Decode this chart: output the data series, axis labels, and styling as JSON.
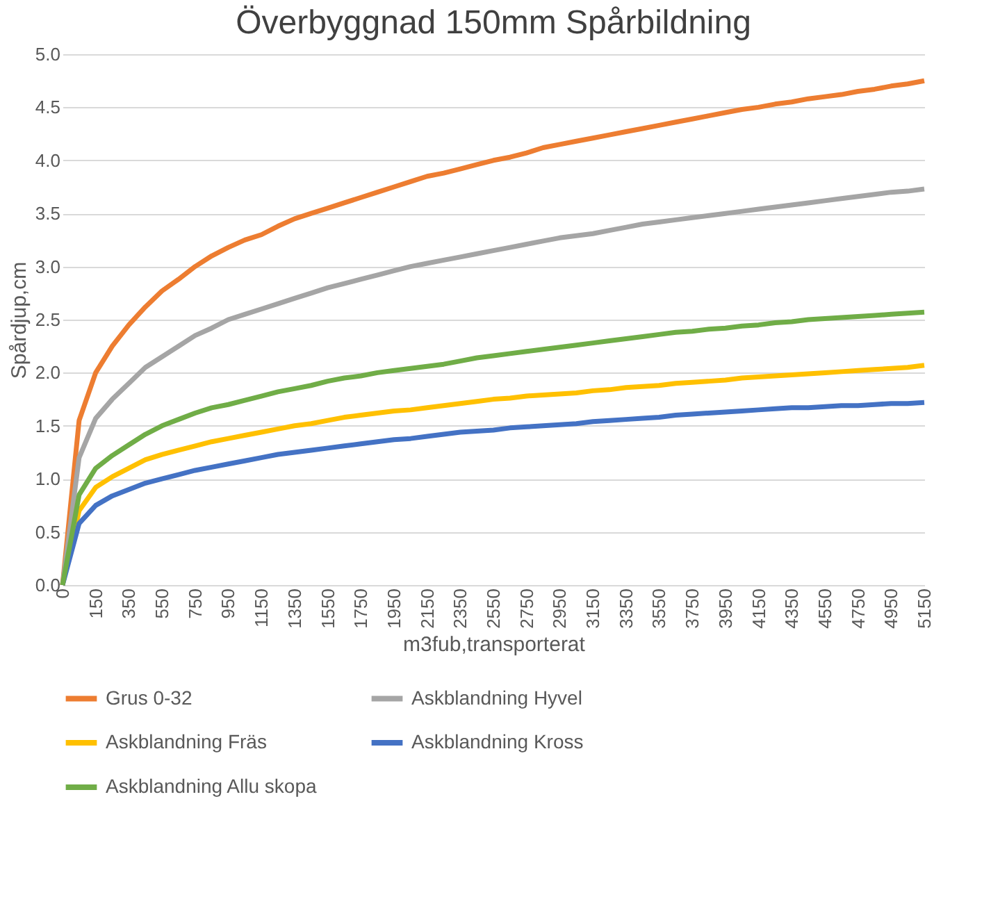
{
  "chart_data": {
    "type": "line",
    "title": "Överbyggnad 150mm Spårbildning",
    "xlabel": "m3fub,transporterat",
    "ylabel": "Spårdjup,cm",
    "categories": [
      "0",
      null,
      "150",
      null,
      "350",
      null,
      "550",
      null,
      "750",
      null,
      "950",
      null,
      "1150",
      null,
      "1350",
      null,
      "1550",
      null,
      "1750",
      null,
      "1950",
      null,
      "2150",
      null,
      "2350",
      null,
      "2550",
      null,
      "2750",
      null,
      "2950",
      null,
      "3150",
      null,
      "3350",
      null,
      "3550",
      null,
      "3750",
      null,
      "3950",
      null,
      "4150",
      null,
      "4350",
      null,
      "4550",
      null,
      "4750",
      null,
      "4950",
      null,
      "5150"
    ],
    "series": [
      {
        "name": "Grus 0-32",
        "color": "#ed7d31",
        "values": [
          0,
          1.55,
          2.0,
          2.25,
          2.45,
          2.62,
          2.77,
          2.88,
          3.0,
          3.1,
          3.18,
          3.25,
          3.3,
          3.38,
          3.45,
          3.5,
          3.55,
          3.6,
          3.65,
          3.7,
          3.75,
          3.8,
          3.85,
          3.88,
          3.92,
          3.96,
          4.0,
          4.03,
          4.07,
          4.12,
          4.15,
          4.18,
          4.21,
          4.24,
          4.27,
          4.3,
          4.33,
          4.36,
          4.39,
          4.42,
          4.45,
          4.48,
          4.5,
          4.53,
          4.55,
          4.58,
          4.6,
          4.62,
          4.65,
          4.67,
          4.7,
          4.72,
          4.75
        ]
      },
      {
        "name": "Askblandning Hyvel",
        "color": "#a5a5a5",
        "values": [
          0,
          1.2,
          1.57,
          1.75,
          1.9,
          2.05,
          2.15,
          2.25,
          2.35,
          2.42,
          2.5,
          2.55,
          2.6,
          2.65,
          2.7,
          2.75,
          2.8,
          2.84,
          2.88,
          2.92,
          2.96,
          3.0,
          3.03,
          3.06,
          3.09,
          3.12,
          3.15,
          3.18,
          3.21,
          3.24,
          3.27,
          3.29,
          3.31,
          3.34,
          3.37,
          3.4,
          3.42,
          3.44,
          3.46,
          3.48,
          3.5,
          3.52,
          3.54,
          3.56,
          3.58,
          3.6,
          3.62,
          3.64,
          3.66,
          3.68,
          3.7,
          3.71,
          3.73
        ]
      },
      {
        "name": "Askblandning Fräs",
        "color": "#ffc000",
        "values": [
          0,
          0.7,
          0.92,
          1.02,
          1.1,
          1.18,
          1.23,
          1.27,
          1.31,
          1.35,
          1.38,
          1.41,
          1.44,
          1.47,
          1.5,
          1.52,
          1.55,
          1.58,
          1.6,
          1.62,
          1.64,
          1.65,
          1.67,
          1.69,
          1.71,
          1.73,
          1.75,
          1.76,
          1.78,
          1.79,
          1.8,
          1.81,
          1.83,
          1.84,
          1.86,
          1.87,
          1.88,
          1.9,
          1.91,
          1.92,
          1.93,
          1.95,
          1.96,
          1.97,
          1.98,
          1.99,
          2.0,
          2.01,
          2.02,
          2.03,
          2.04,
          2.05,
          2.07
        ]
      },
      {
        "name": "Askblandning Kross",
        "color": "#4472c4",
        "values": [
          0,
          0.58,
          0.75,
          0.84,
          0.9,
          0.96,
          1.0,
          1.04,
          1.08,
          1.11,
          1.14,
          1.17,
          1.2,
          1.23,
          1.25,
          1.27,
          1.29,
          1.31,
          1.33,
          1.35,
          1.37,
          1.38,
          1.4,
          1.42,
          1.44,
          1.45,
          1.46,
          1.48,
          1.49,
          1.5,
          1.51,
          1.52,
          1.54,
          1.55,
          1.56,
          1.57,
          1.58,
          1.6,
          1.61,
          1.62,
          1.63,
          1.64,
          1.65,
          1.66,
          1.67,
          1.67,
          1.68,
          1.69,
          1.69,
          1.7,
          1.71,
          1.71,
          1.72
        ]
      },
      {
        "name": "Askblandning Allu skopa",
        "color": "#70ad47",
        "values": [
          0,
          0.85,
          1.1,
          1.22,
          1.32,
          1.42,
          1.5,
          1.56,
          1.62,
          1.67,
          1.7,
          1.74,
          1.78,
          1.82,
          1.85,
          1.88,
          1.92,
          1.95,
          1.97,
          2.0,
          2.02,
          2.04,
          2.06,
          2.08,
          2.11,
          2.14,
          2.16,
          2.18,
          2.2,
          2.22,
          2.24,
          2.26,
          2.28,
          2.3,
          2.32,
          2.34,
          2.36,
          2.38,
          2.39,
          2.41,
          2.42,
          2.44,
          2.45,
          2.47,
          2.48,
          2.5,
          2.51,
          2.52,
          2.53,
          2.54,
          2.55,
          2.56,
          2.57
        ]
      }
    ],
    "ylim": [
      0,
      5.0
    ],
    "yticks": [
      {
        "value": 0,
        "label": "0.0"
      },
      {
        "value": 0.5,
        "label": "0.5"
      },
      {
        "value": 1,
        "label": "1.0"
      },
      {
        "value": 1.5,
        "label": "1.5"
      },
      {
        "value": 2,
        "label": "2.0"
      },
      {
        "value": 2.5,
        "label": "2.5"
      },
      {
        "value": 3,
        "label": "3.0"
      },
      {
        "value": 3.5,
        "label": "3.5"
      },
      {
        "value": 4,
        "label": "4.0"
      },
      {
        "value": 4.5,
        "label": "4.5"
      },
      {
        "value": 5,
        "label": "5.0"
      }
    ],
    "grid": "y",
    "legend": "bottom",
    "marker": "none",
    "line_style": "solid"
  }
}
